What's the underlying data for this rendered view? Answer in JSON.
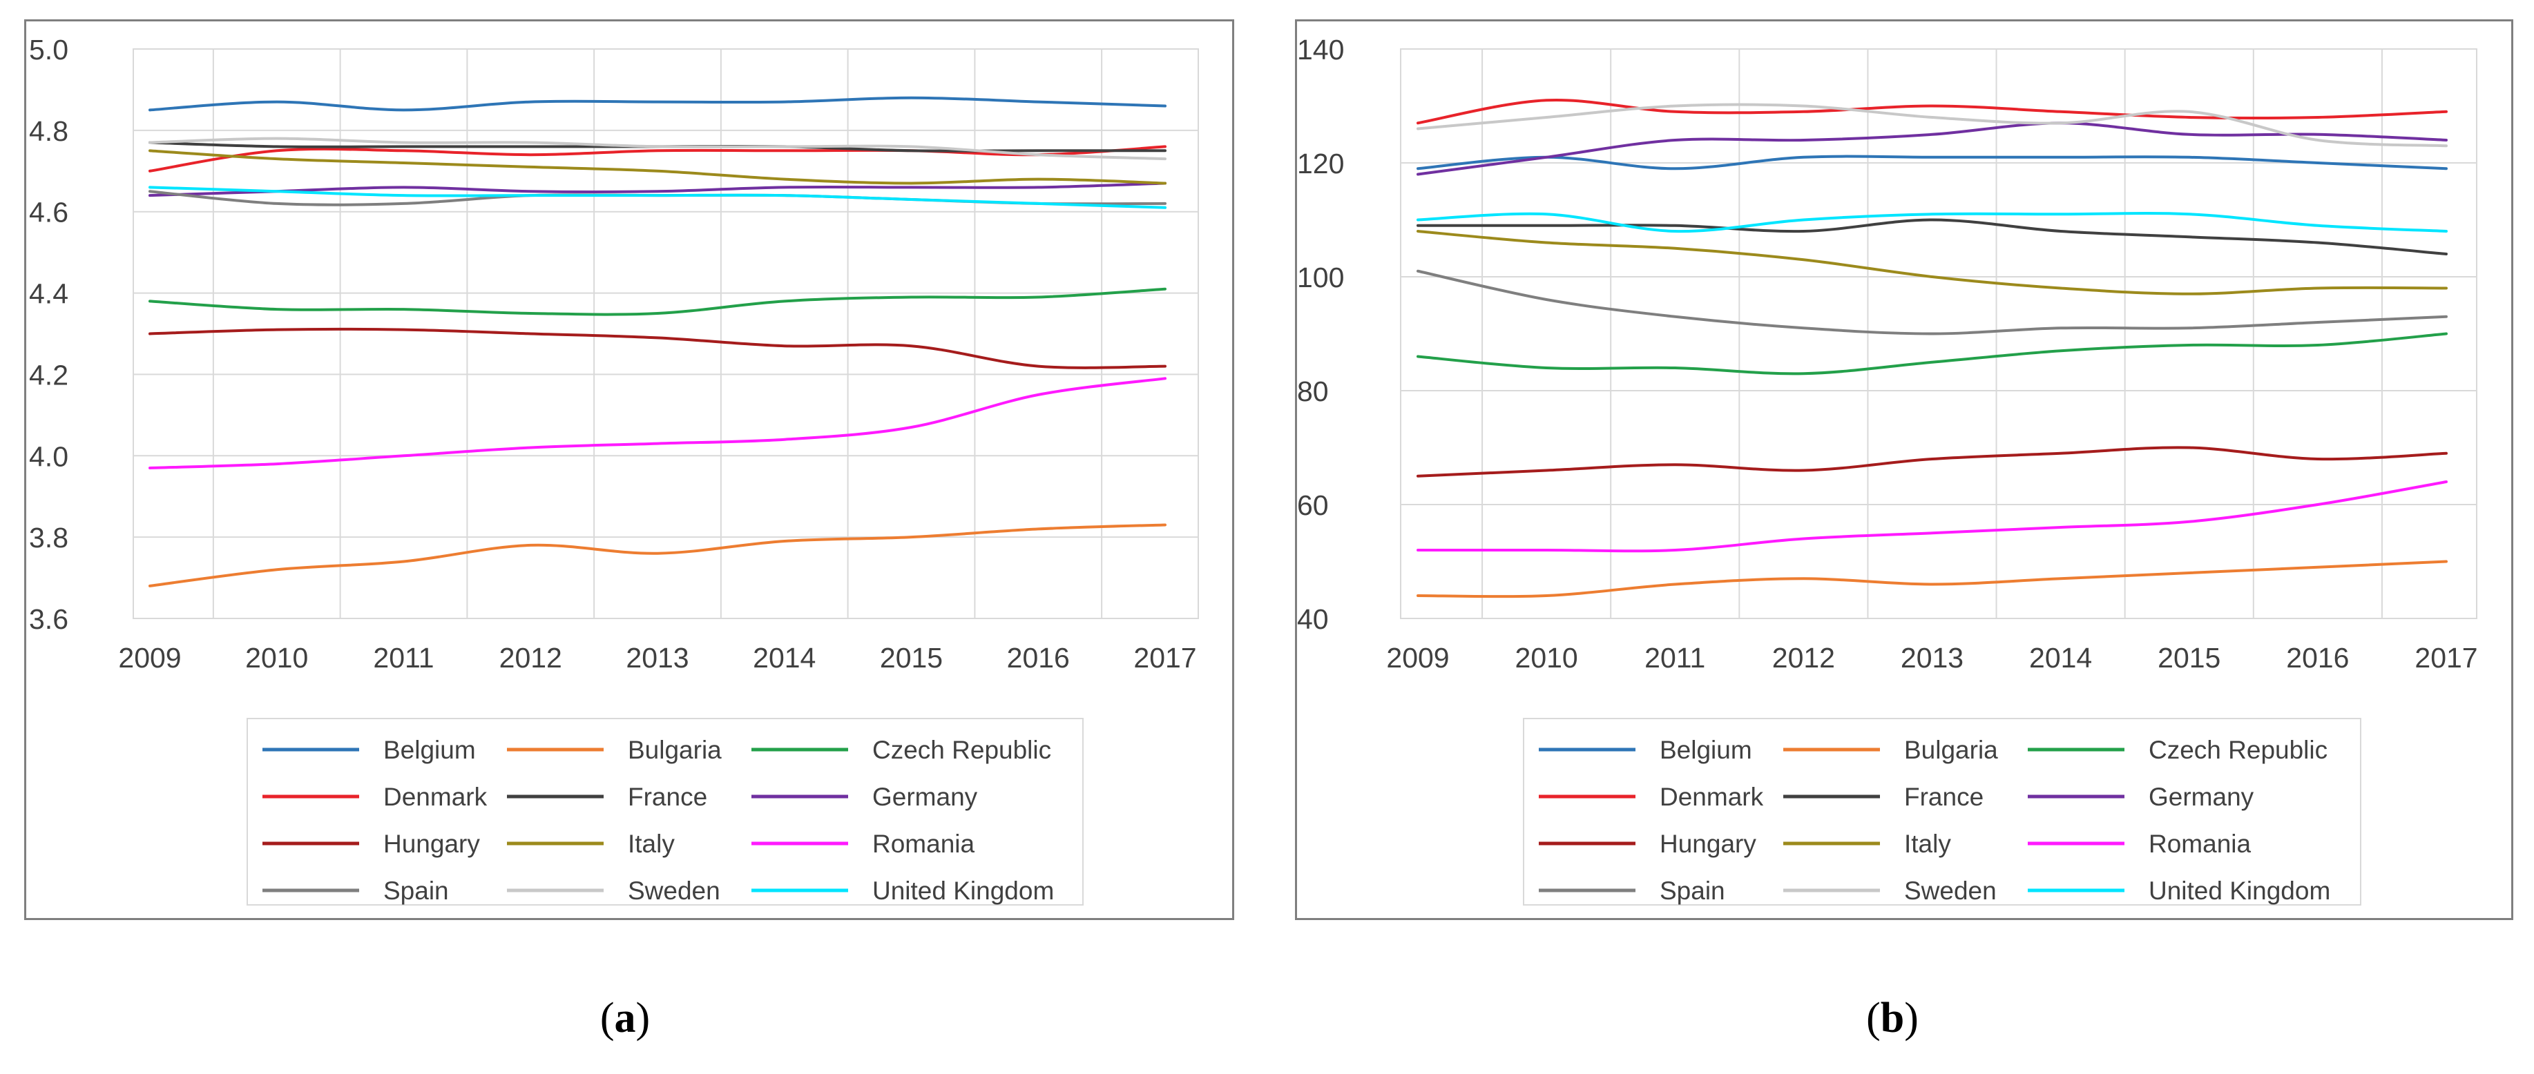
{
  "captions": [
    "(a)",
    "(b)"
  ],
  "caption_letters": [
    "a",
    "b"
  ],
  "colors": {
    "Belgium": "#2e75b6",
    "Bulgaria": "#ed7d31",
    "Czech Republic": "#23a04a",
    "Denmark": "#e8232a",
    "France": "#404040",
    "Germany": "#7030a0",
    "Hungary": "#a51c1c",
    "Italy": "#9c8a1c",
    "Romania": "#ff1aff",
    "Spain": "#7f7f7f",
    "Sweden": "#c8c8c8",
    "United Kingdom": "#00e5ff"
  },
  "chart_data": [
    {
      "type": "line",
      "panel": "a",
      "title": "",
      "xlabel": "",
      "ylabel": "",
      "x": [
        2009,
        2010,
        2011,
        2012,
        2013,
        2014,
        2015,
        2016,
        2017
      ],
      "x_ticks": [
        "2009",
        "2010",
        "2011",
        "2012",
        "2013",
        "2014",
        "2015",
        "2016",
        "2017"
      ],
      "y_ticks": [
        "5.0",
        "4.8",
        "4.6",
        "4.4",
        "4.2",
        "4.0",
        "3.8",
        "3.6"
      ],
      "y_tick_values": [
        5.0,
        4.8,
        4.6,
        4.4,
        4.2,
        4.0,
        3.8,
        3.6
      ],
      "ylim": [
        3.6,
        5.0
      ],
      "grid": true,
      "legend": "bottom",
      "series": [
        {
          "name": "Belgium",
          "values": [
            4.85,
            4.87,
            4.85,
            4.87,
            4.87,
            4.87,
            4.88,
            4.87,
            4.86
          ]
        },
        {
          "name": "Bulgaria",
          "values": [
            3.68,
            3.72,
            3.74,
            3.78,
            3.76,
            3.79,
            3.8,
            3.82,
            3.83
          ]
        },
        {
          "name": "Czech Republic",
          "values": [
            4.38,
            4.36,
            4.36,
            4.35,
            4.35,
            4.38,
            4.39,
            4.39,
            4.41
          ]
        },
        {
          "name": "Denmark",
          "values": [
            4.7,
            4.75,
            4.75,
            4.74,
            4.75,
            4.75,
            4.75,
            4.74,
            4.76
          ]
        },
        {
          "name": "France",
          "values": [
            4.77,
            4.76,
            4.76,
            4.76,
            4.76,
            4.76,
            4.75,
            4.75,
            4.75
          ]
        },
        {
          "name": "Germany",
          "values": [
            4.64,
            4.65,
            4.66,
            4.65,
            4.65,
            4.66,
            4.66,
            4.66,
            4.67
          ]
        },
        {
          "name": "Hungary",
          "values": [
            4.3,
            4.31,
            4.31,
            4.3,
            4.29,
            4.27,
            4.27,
            4.22,
            4.22
          ]
        },
        {
          "name": "Italy",
          "values": [
            4.75,
            4.73,
            4.72,
            4.71,
            4.7,
            4.68,
            4.67,
            4.68,
            4.67
          ]
        },
        {
          "name": "Romania",
          "values": [
            3.97,
            3.98,
            4.0,
            4.02,
            4.03,
            4.04,
            4.07,
            4.15,
            4.19
          ]
        },
        {
          "name": "Spain",
          "values": [
            4.65,
            4.62,
            4.62,
            4.64,
            4.64,
            4.64,
            4.63,
            4.62,
            4.62
          ]
        },
        {
          "name": "Sweden",
          "values": [
            4.77,
            4.78,
            4.77,
            4.77,
            4.76,
            4.76,
            4.76,
            4.74,
            4.73
          ]
        },
        {
          "name": "United Kingdom",
          "values": [
            4.66,
            4.65,
            4.64,
            4.64,
            4.64,
            4.64,
            4.63,
            4.62,
            4.61
          ]
        }
      ]
    },
    {
      "type": "line",
      "panel": "b",
      "title": "",
      "xlabel": "",
      "ylabel": "",
      "x": [
        2009,
        2010,
        2011,
        2012,
        2013,
        2014,
        2015,
        2016,
        2017
      ],
      "x_ticks": [
        "2009",
        "2010",
        "2011",
        "2012",
        "2013",
        "2014",
        "2015",
        "2016",
        "2017"
      ],
      "y_ticks": [
        "140",
        "120",
        "100",
        "80",
        "60",
        "40"
      ],
      "y_tick_values": [
        140,
        120,
        100,
        80,
        60,
        40
      ],
      "ylim": [
        40,
        140
      ],
      "grid": true,
      "legend": "bottom",
      "series": [
        {
          "name": "Belgium",
          "values": [
            119,
            121,
            119,
            121,
            121,
            121,
            121,
            120,
            119
          ]
        },
        {
          "name": "Bulgaria",
          "values": [
            44,
            44,
            46,
            47,
            46,
            47,
            48,
            49,
            50
          ]
        },
        {
          "name": "Czech Republic",
          "values": [
            86,
            84,
            84,
            83,
            85,
            87,
            88,
            88,
            90
          ]
        },
        {
          "name": "Denmark",
          "values": [
            127,
            131,
            129,
            129,
            130,
            129,
            128,
            128,
            129
          ]
        },
        {
          "name": "France",
          "values": [
            109,
            109,
            109,
            108,
            110,
            108,
            107,
            106,
            104
          ]
        },
        {
          "name": "Germany",
          "values": [
            118,
            121,
            124,
            124,
            125,
            127,
            125,
            125,
            124
          ]
        },
        {
          "name": "Hungary",
          "values": [
            65,
            66,
            67,
            66,
            68,
            69,
            70,
            68,
            69
          ]
        },
        {
          "name": "Italy",
          "values": [
            108,
            106,
            105,
            103,
            100,
            98,
            97,
            98,
            98
          ]
        },
        {
          "name": "Romania",
          "values": [
            52,
            52,
            52,
            54,
            55,
            56,
            57,
            60,
            64
          ]
        },
        {
          "name": "Spain",
          "values": [
            101,
            96,
            93,
            91,
            90,
            91,
            91,
            92,
            93
          ]
        },
        {
          "name": "Sweden",
          "values": [
            126,
            128,
            130,
            130,
            128,
            127,
            129,
            124,
            123
          ]
        },
        {
          "name": "United Kingdom",
          "values": [
            110,
            111,
            108,
            110,
            111,
            111,
            111,
            109,
            108
          ]
        }
      ]
    }
  ]
}
